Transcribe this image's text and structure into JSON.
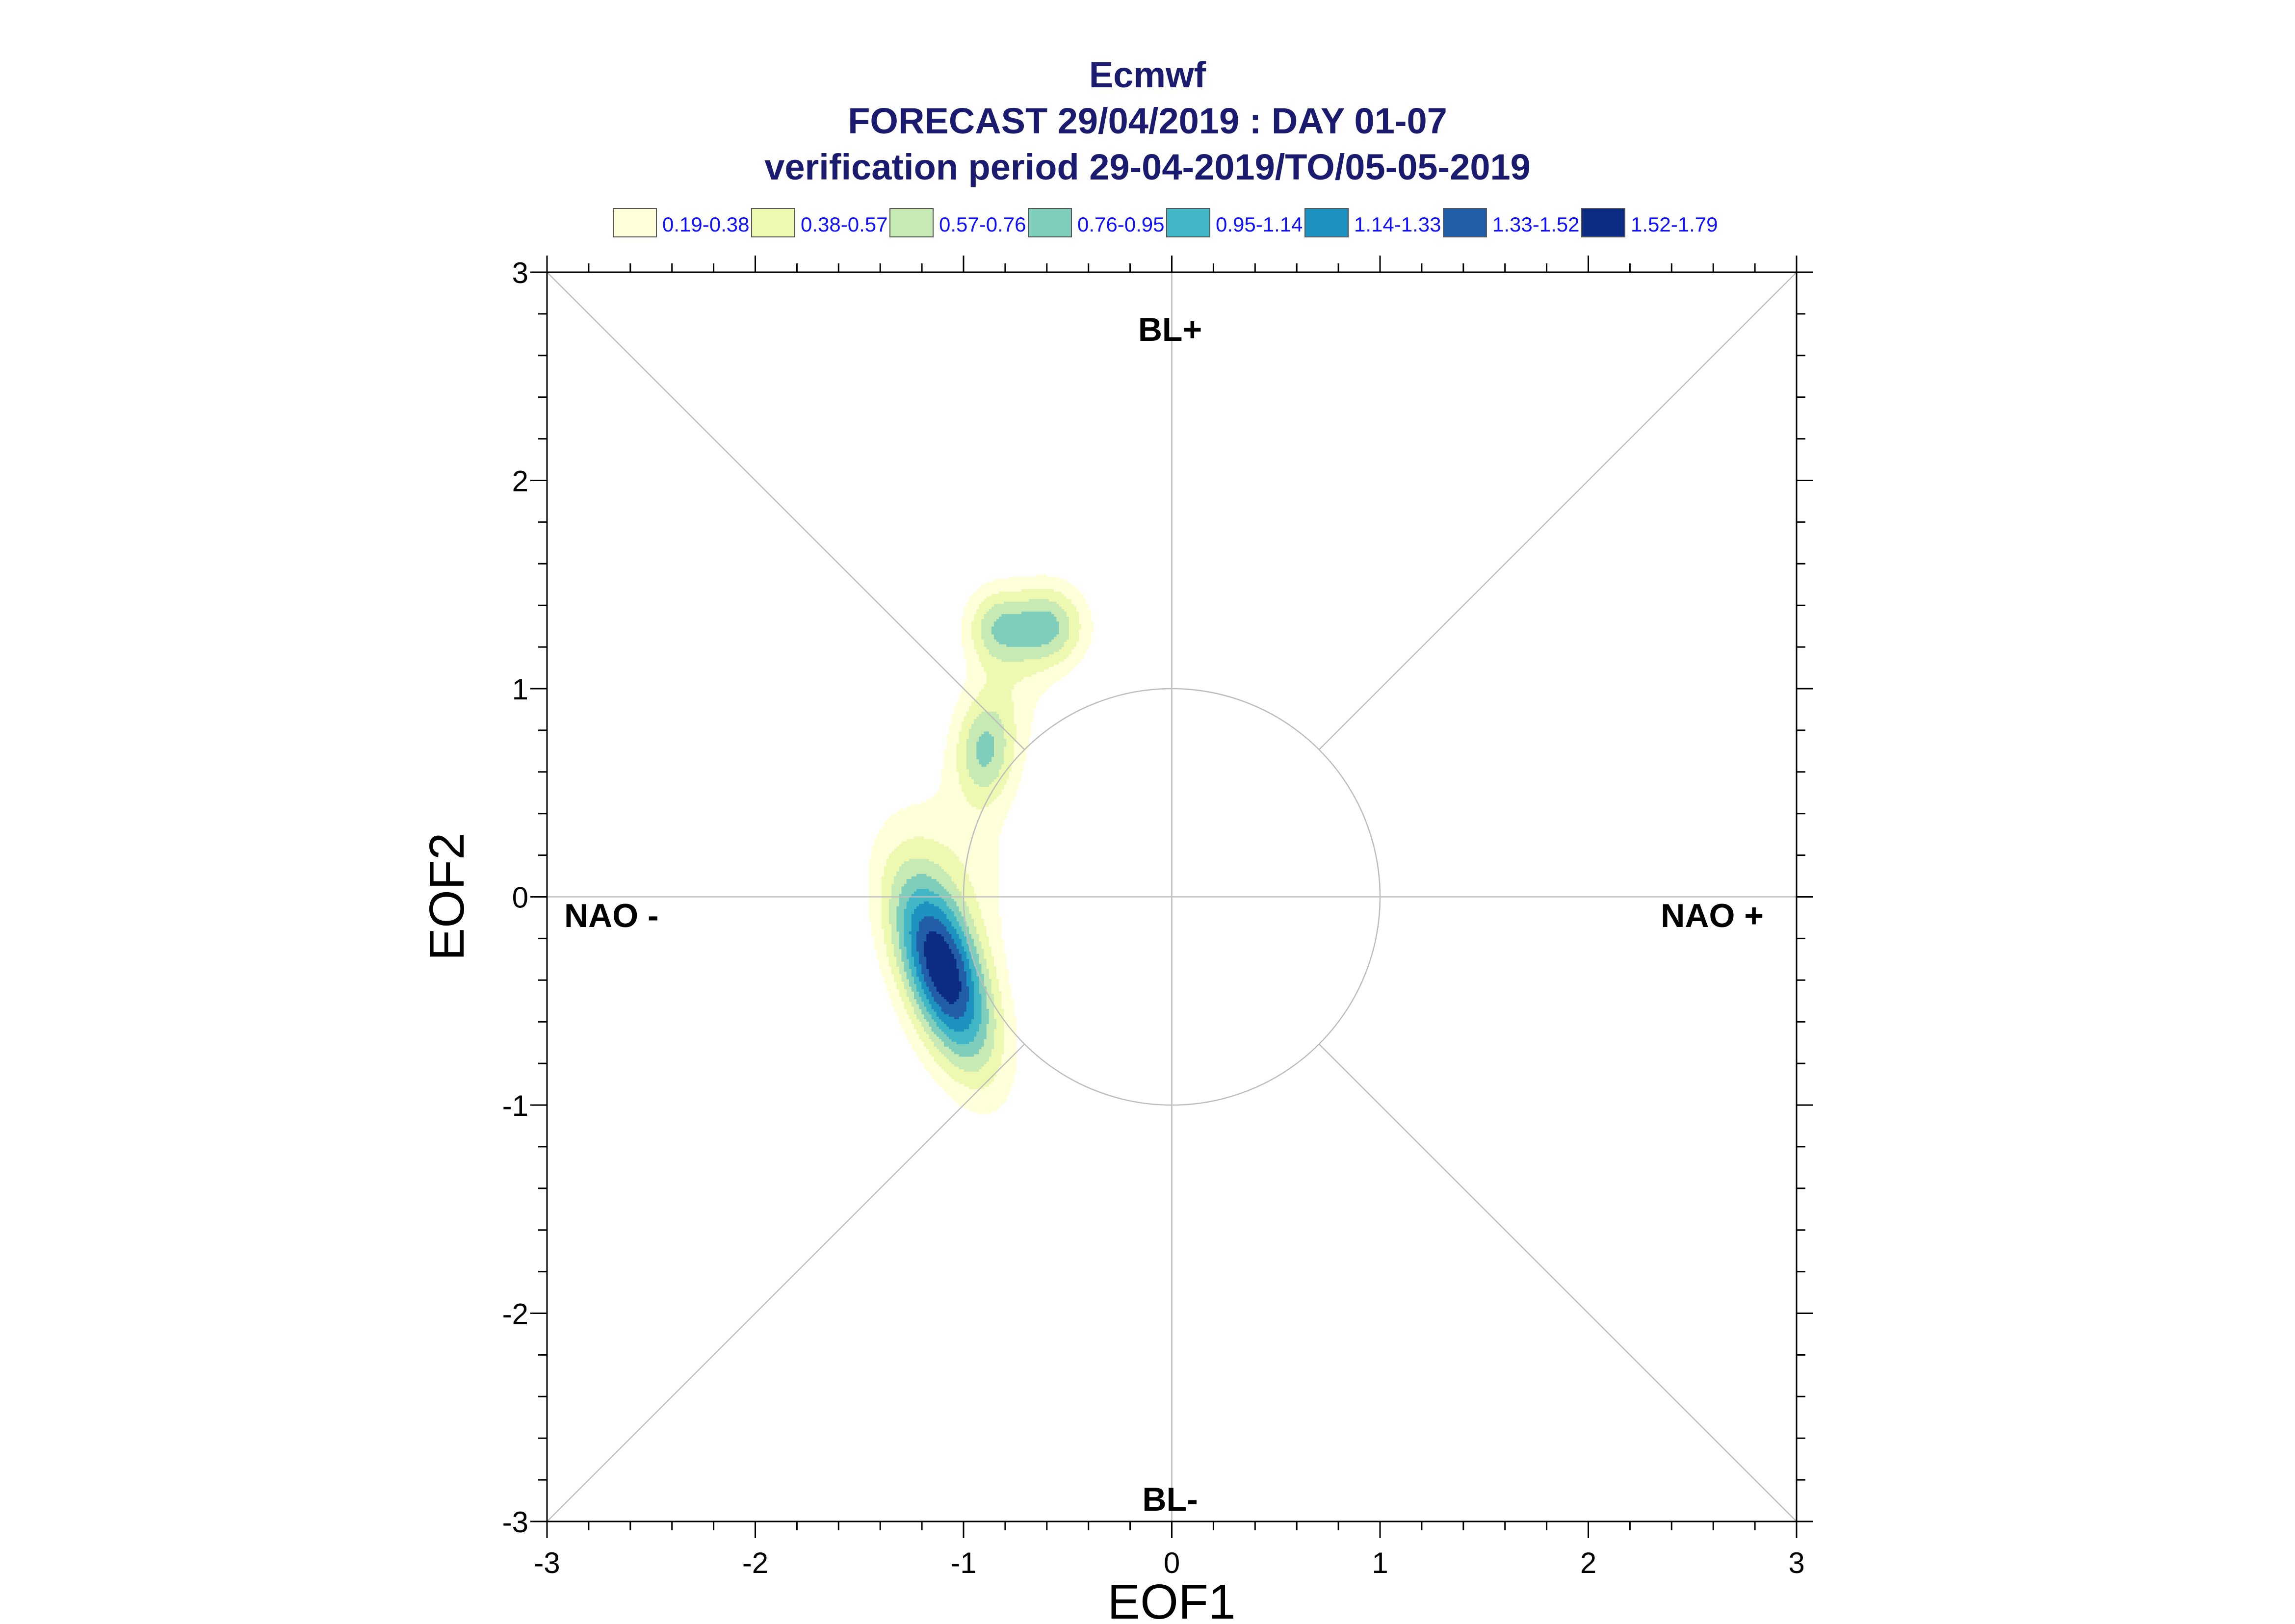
{
  "titles": {
    "line1": "Ecmwf",
    "line2": "FORECAST 29/04/2019 : DAY 01-07",
    "line3": "verification period 29-04-2019/TO/05-05-2019"
  },
  "legend": [
    {
      "label": "0.19-0.38",
      "color": "#ffffd9"
    },
    {
      "label": "0.38-0.57",
      "color": "#edf8b1"
    },
    {
      "label": "0.57-0.76",
      "color": "#c7e9b4"
    },
    {
      "label": "0.76-0.95",
      "color": "#7fcdbb"
    },
    {
      "label": "0.95-1.14",
      "color": "#41b6c4"
    },
    {
      "label": "1.14-1.33",
      "color": "#1d91c0"
    },
    {
      "label": "1.33-1.52",
      "color": "#225ea8"
    },
    {
      "label": "1.52-1.79",
      "color": "#0c2c84"
    }
  ],
  "regimes": {
    "top": "BL+",
    "bottom": "BL-",
    "left": "NAO -",
    "right": "NAO +"
  },
  "chart_data": {
    "type": "contour",
    "xlabel": "EOF1",
    "ylabel": "EOF2",
    "xlim": [
      -3,
      3
    ],
    "ylim": [
      -3,
      3
    ],
    "xticks": [
      "-3",
      "-2",
      "-1",
      "0",
      "1",
      "2",
      "3"
    ],
    "yticks": [
      "-3",
      "-2",
      "-1",
      "0",
      "1",
      "2",
      "3"
    ],
    "reference_circle_radius": 1,
    "density_peaks": [
      {
        "x": -1.1,
        "y": -0.35,
        "sx": 0.17,
        "sy": 0.33,
        "rho": -0.55,
        "amp": 1.7
      },
      {
        "x": -0.6,
        "y": 1.3,
        "sx": 0.13,
        "sy": 0.14,
        "rho": 0.0,
        "amp": 0.8
      },
      {
        "x": -0.85,
        "y": 1.3,
        "sx": 0.1,
        "sy": 0.13,
        "rho": 0.0,
        "amp": 0.55
      },
      {
        "x": -0.9,
        "y": 0.7,
        "sx": 0.1,
        "sy": 0.18,
        "rho": 0.0,
        "amp": 0.7
      },
      {
        "x": -1.0,
        "y": 0.2,
        "sx": 0.2,
        "sy": 0.3,
        "rho": -0.3,
        "amp": 0.25
      },
      {
        "x": -0.78,
        "y": 1.0,
        "sx": 0.14,
        "sy": 0.25,
        "rho": 0.0,
        "amp": 0.25
      }
    ]
  }
}
